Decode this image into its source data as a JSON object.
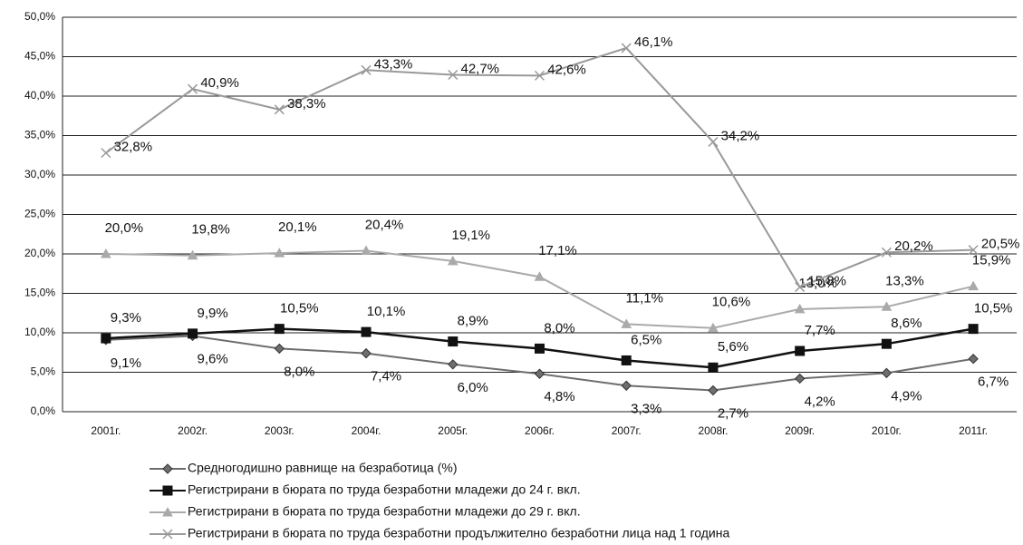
{
  "chart_data": {
    "type": "line",
    "categories": [
      "2001г.",
      "2002г.",
      "2003г.",
      "2004г.",
      "2005г.",
      "2006г.",
      "2007г.",
      "2008г.",
      "2009г.",
      "2010г.",
      "2011г."
    ],
    "series": [
      {
        "name": "Средногодишно равнище на безработица (%)",
        "color": "#6e6e6e",
        "marker": "diamond",
        "values": [
          9.1,
          9.6,
          8.0,
          7.4,
          6.0,
          4.8,
          3.3,
          2.7,
          4.2,
          4.9,
          6.7
        ],
        "value_labels": [
          "9,1%",
          "9,6%",
          "8,0%",
          "7,4%",
          "6,0%",
          "4,8%",
          "3,3%",
          "2,7%",
          "4,2%",
          "4,9%",
          "6,7%"
        ]
      },
      {
        "name": "Регистрирани в бюрата по труда безработни младежи до 24 г. вкл.",
        "color": "#111111",
        "marker": "square",
        "values": [
          9.3,
          9.9,
          10.5,
          10.1,
          8.9,
          8.0,
          6.5,
          5.6,
          7.7,
          8.6,
          10.5
        ],
        "value_labels": [
          "9,3%",
          "9,9%",
          "10,5%",
          "10,1%",
          "8,9%",
          "8,0%",
          "6,5%",
          "5,6%",
          "7,7%",
          "8,6%",
          "10,5%"
        ]
      },
      {
        "name": "Регистрирани в бюрата по труда безработни младежи до 29 г. вкл.",
        "color": "#aaaaaa",
        "marker": "triangle",
        "values": [
          20.0,
          19.8,
          20.1,
          20.4,
          19.1,
          17.1,
          11.1,
          10.6,
          13.0,
          13.3,
          15.9
        ],
        "value_labels": [
          "20,0%",
          "19,8%",
          "20,1%",
          "20,4%",
          "19,1%",
          "17,1%",
          "11,1%",
          "10,6%",
          "13,0%",
          "13,3%",
          "15,9%"
        ]
      },
      {
        "name": "Регистрирани в бюрата по труда безработни продължително безработни лица над 1 година",
        "color": "#999999",
        "marker": "x",
        "values": [
          32.8,
          40.9,
          38.3,
          43.3,
          42.7,
          42.6,
          46.1,
          34.2,
          15.8,
          20.2,
          20.5
        ],
        "value_labels": [
          "32,8%",
          "40,9%",
          "38,3%",
          "43,3%",
          "42,7%",
          "42,6%",
          "46,1%",
          "34,2%",
          "15,8%",
          "20,2%",
          "20,5%"
        ]
      }
    ],
    "ylim": [
      0,
      50
    ],
    "yticks": [
      {
        "value": 0,
        "label": "0,0%"
      },
      {
        "value": 5,
        "label": "5,0%"
      },
      {
        "value": 10,
        "label": "10,0%"
      },
      {
        "value": 15,
        "label": "15,0%"
      },
      {
        "value": 20,
        "label": "20,0%"
      },
      {
        "value": 25,
        "label": "25,0%"
      },
      {
        "value": 30,
        "label": "30,0%"
      },
      {
        "value": 35,
        "label": "35,0%"
      },
      {
        "value": 40,
        "label": "40,0%"
      },
      {
        "value": 45,
        "label": "45,0%"
      },
      {
        "value": 50,
        "label": "50,0%"
      }
    ],
    "grid": true,
    "legend": "bottom"
  }
}
